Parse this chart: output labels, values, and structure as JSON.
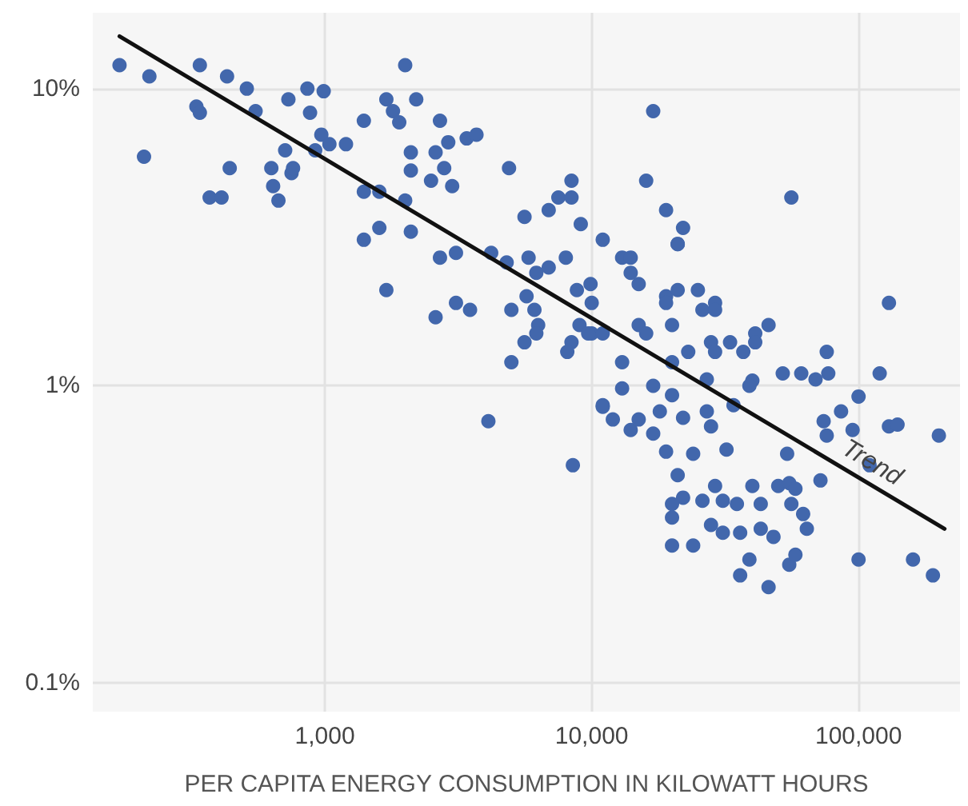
{
  "chart_data": {
    "type": "scatter",
    "xlabel": "PER CAPITA ENERGY CONSUMPTION IN KILOWATT HOURS",
    "log": "xy",
    "grid": true,
    "legend": false,
    "marker": "circle",
    "xlim": [
      135,
      240000
    ],
    "ylim": [
      0.08,
      18
    ],
    "xticks": [
      {
        "value": 1000,
        "label": "1,000"
      },
      {
        "value": 10000,
        "label": "10,000"
      },
      {
        "value": 100000,
        "label": "100,000"
      }
    ],
    "yticks": [
      {
        "value": 10,
        "label": "10%"
      },
      {
        "value": 1,
        "label": "1%"
      },
      {
        "value": 0.1,
        "label": "0.1%"
      }
    ],
    "series": [
      {
        "color": "#4267ac",
        "x": [
          170,
          220,
          210,
          340,
          430,
          510,
          330,
          340,
          550,
          440,
          370,
          410,
          630,
          640,
          670,
          750,
          760,
          710,
          730,
          860,
          990,
          880,
          970,
          1040,
          920,
          1200,
          1400,
          1700,
          1400,
          1600,
          1600,
          1400,
          1700,
          2000,
          1800,
          1900,
          2200,
          2700,
          2900,
          3400,
          3700,
          2100,
          2100,
          2600,
          2800,
          2500,
          3000,
          4900,
          2000,
          2100,
          2700,
          3100,
          2600,
          3100,
          3500,
          4200,
          4800,
          5600,
          5800,
          6200,
          6900,
          6900,
          7500,
          8400,
          8400,
          8000,
          9100,
          5000,
          5700,
          6100,
          6300,
          6200,
          5600,
          5000,
          11000,
          17000,
          16000,
          19000,
          22000,
          21000,
          8800,
          9900,
          10000,
          13000,
          14000,
          14000,
          15000,
          8400,
          9000,
          10000,
          11000,
          15000,
          16000,
          13000,
          13000,
          11000,
          19000,
          20000,
          20000,
          17000,
          4100,
          8500,
          11000,
          12000,
          14000,
          15000,
          17000,
          18000,
          20000,
          19000,
          24000,
          21000,
          22000,
          20000,
          20000,
          20000,
          24000,
          26000,
          29000,
          28000,
          22000,
          27000,
          28000,
          27000,
          23000,
          25000,
          21000,
          19000,
          21000,
          29000,
          28000,
          26000,
          29000,
          46000,
          41000,
          33000,
          29000,
          37000,
          41000,
          76000,
          52000,
          61000,
          77000,
          69000,
          40000,
          39000,
          130000,
          120000,
          100000,
          86000,
          74000,
          76000,
          95000,
          130000,
          140000,
          200000,
          110000,
          72000,
          54000,
          32000,
          34000,
          40000,
          50000,
          55000,
          58000,
          56000,
          62000,
          64000,
          43000,
          31000,
          35000,
          31000,
          36000,
          43000,
          48000,
          39000,
          36000,
          46000,
          55000,
          58000,
          100000,
          160000,
          190000,
          56000,
          8100,
          9700
        ],
        "values": [
          12,
          11,
          5.9,
          12,
          11,
          10,
          8.7,
          8.3,
          8.4,
          5.4,
          4.3,
          4.3,
          5.4,
          4.7,
          4.2,
          5.2,
          5.4,
          6.2,
          9.2,
          10,
          9.8,
          8.3,
          7.0,
          6.5,
          6.2,
          6.5,
          7.8,
          9.2,
          4.5,
          4.5,
          3.4,
          3.1,
          2.1,
          12,
          8.4,
          7.7,
          9.2,
          7.8,
          6.6,
          6.8,
          7.0,
          6.1,
          5.3,
          6.1,
          5.4,
          4.9,
          4.7,
          5.4,
          4.2,
          3.3,
          2.7,
          2.8,
          1.7,
          1.9,
          1.8,
          2.8,
          2.6,
          3.7,
          2.7,
          2.4,
          2.5,
          3.9,
          4.3,
          4.9,
          4.3,
          2.7,
          3.5,
          1.8,
          2.0,
          1.8,
          1.6,
          1.5,
          1.4,
          1.2,
          3.1,
          8.4,
          4.9,
          3.9,
          3.4,
          3.0,
          2.1,
          2.2,
          1.9,
          2.7,
          2.7,
          2.4,
          2.2,
          1.4,
          1.6,
          1.5,
          1.5,
          1.6,
          1.5,
          1.2,
          0.98,
          0.86,
          2.0,
          1.6,
          1.2,
          1.0,
          0.76,
          0.54,
          0.85,
          0.77,
          0.71,
          0.77,
          0.69,
          0.82,
          0.93,
          0.6,
          0.59,
          0.5,
          0.42,
          0.4,
          0.36,
          0.29,
          0.29,
          0.41,
          0.46,
          0.34,
          0.78,
          0.82,
          0.73,
          1.05,
          1.3,
          2.1,
          3.0,
          1.9,
          2.1,
          1.9,
          1.4,
          1.8,
          1.8,
          1.6,
          1.5,
          1.4,
          1.3,
          1.3,
          1.4,
          1.3,
          1.1,
          1.1,
          1.1,
          1.05,
          1.04,
          1.0,
          1.9,
          1.1,
          0.92,
          0.82,
          0.76,
          0.68,
          0.71,
          0.73,
          0.74,
          0.68,
          0.54,
          0.48,
          0.59,
          0.61,
          0.86,
          0.46,
          0.46,
          0.47,
          0.45,
          0.4,
          0.37,
          0.33,
          0.4,
          0.41,
          0.4,
          0.32,
          0.32,
          0.33,
          0.31,
          0.26,
          0.23,
          0.21,
          0.25,
          0.27,
          0.26,
          0.26,
          0.23,
          4.3,
          1.3,
          1.5
        ]
      },
      {
        "type": "line",
        "name": "Trend",
        "color": "#111111",
        "marker": "none",
        "line_style": "solid",
        "x": [
          170,
          210000
        ],
        "values": [
          15,
          0.33
        ]
      }
    ]
  }
}
